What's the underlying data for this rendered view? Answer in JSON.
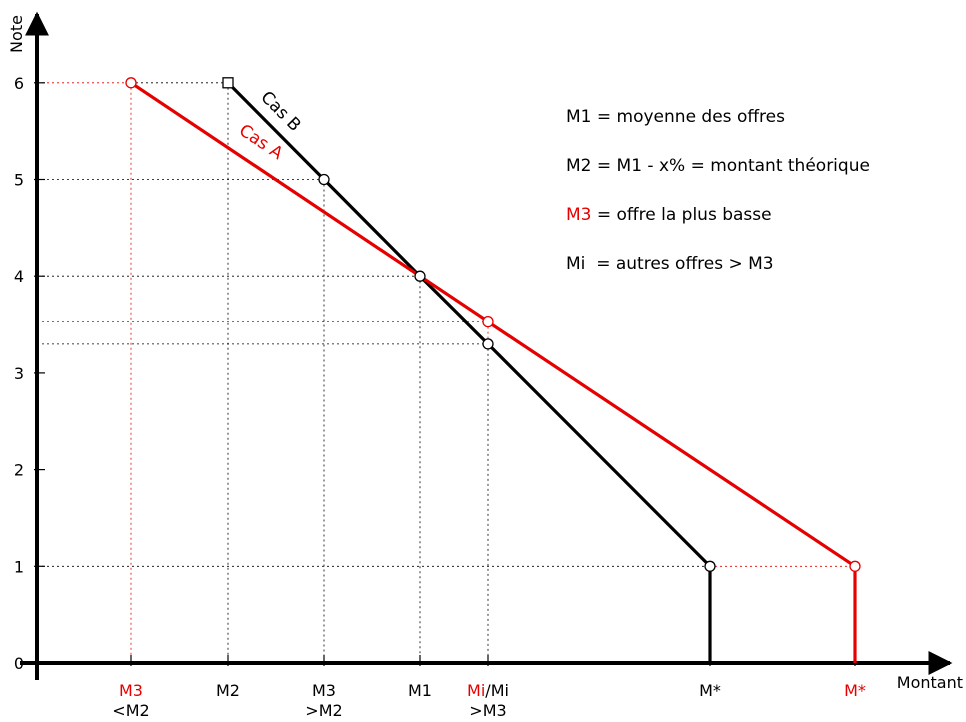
{
  "chart_data": {
    "type": "line",
    "xlabel": "Montant",
    "ylabel": "Note",
    "ylim": [
      0,
      6
    ],
    "yticks": [
      0,
      1,
      2,
      3,
      4,
      5,
      6
    ],
    "x_ticks": [
      {
        "key": "M3a",
        "parts": [
          {
            "t": "M3",
            "color": "#e60000"
          }
        ],
        "sub": "<M2"
      },
      {
        "key": "M2",
        "parts": [
          {
            "t": "M2",
            "color": "#000000"
          }
        ],
        "sub": ""
      },
      {
        "key": "M3b",
        "parts": [
          {
            "t": "M3",
            "color": "#000000"
          }
        ],
        "sub": ">M2"
      },
      {
        "key": "M1",
        "parts": [
          {
            "t": "M1",
            "color": "#000000"
          }
        ],
        "sub": ""
      },
      {
        "key": "Mi",
        "parts": [
          {
            "t": "Mi",
            "color": "#e60000"
          },
          {
            "t": "/Mi",
            "color": "#000000"
          }
        ],
        "sub": ">M3"
      },
      {
        "key": "MstarB",
        "parts": [
          {
            "t": "M*",
            "color": "#000000"
          }
        ],
        "sub": ""
      },
      {
        "key": "MstarA",
        "parts": [
          {
            "t": "M*",
            "color": "#e60000"
          }
        ],
        "sub": ""
      }
    ],
    "series": [
      {
        "name": "Cas A",
        "color": "#e60000",
        "points": [
          {
            "x": "M3a",
            "y": 6
          },
          {
            "x": "M1",
            "y": 4
          },
          {
            "x": "Mi",
            "y": 3.53
          },
          {
            "x": "MstarA",
            "y": 1
          }
        ]
      },
      {
        "name": "Cas B",
        "color": "#000000",
        "points": [
          {
            "x": "M2",
            "y": 6
          },
          {
            "x": "M3b",
            "y": 5
          },
          {
            "x": "M1",
            "y": 4
          },
          {
            "x": "Mi",
            "y": 3.3
          },
          {
            "x": "MstarB",
            "y": 1
          }
        ]
      }
    ],
    "legend": [
      {
        "parts": [
          {
            "t": "M1",
            "color": "#000000"
          },
          {
            "t": " = moyenne des offres",
            "color": "#000000"
          }
        ]
      },
      {
        "parts": [
          {
            "t": "M2",
            "color": "#000000"
          },
          {
            "t": " = M1 - x% = montant théorique",
            "color": "#000000"
          }
        ]
      },
      {
        "parts": [
          {
            "t": "M3",
            "color": "#e60000"
          },
          {
            "t": " = offre la plus basse",
            "color": "#000000"
          }
        ]
      },
      {
        "parts": [
          {
            "t": "Mi",
            "color": "#000000"
          },
          {
            "t": "  = autres offres > M3",
            "color": "#000000"
          }
        ]
      }
    ],
    "legend_position": "top-right",
    "grid": false
  }
}
